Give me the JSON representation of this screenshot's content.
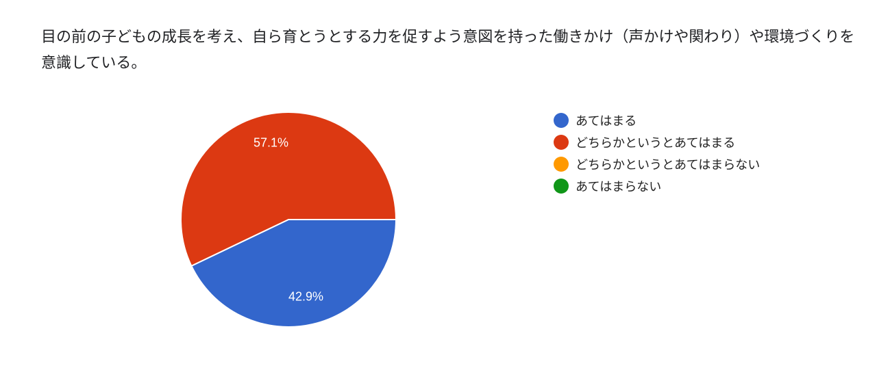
{
  "question": {
    "title": "目の前の子どもの成長を考え、自ら育とうとする力を促すよう意図を持った働きかけ（声かけや関わり）や環境づくりを意識している。"
  },
  "chart_data": {
    "type": "pie",
    "title": "目の前の子どもの成長を考え、自ら育とうとする力を促すよう意図を持った働きかけ（声かけや関わり）や環境づくりを意識している。",
    "categories": [
      "あてはまる",
      "どちらかというとあてはまる",
      "どちらかというとあてはまらない",
      "あてはまらない"
    ],
    "values": [
      42.9,
      57.1,
      0,
      0
    ],
    "value_labels": [
      "42.9%",
      "57.1%",
      "",
      ""
    ],
    "colors": [
      "#3366cc",
      "#dc3912",
      "#ff9900",
      "#109618"
    ],
    "legend_position": "right"
  }
}
